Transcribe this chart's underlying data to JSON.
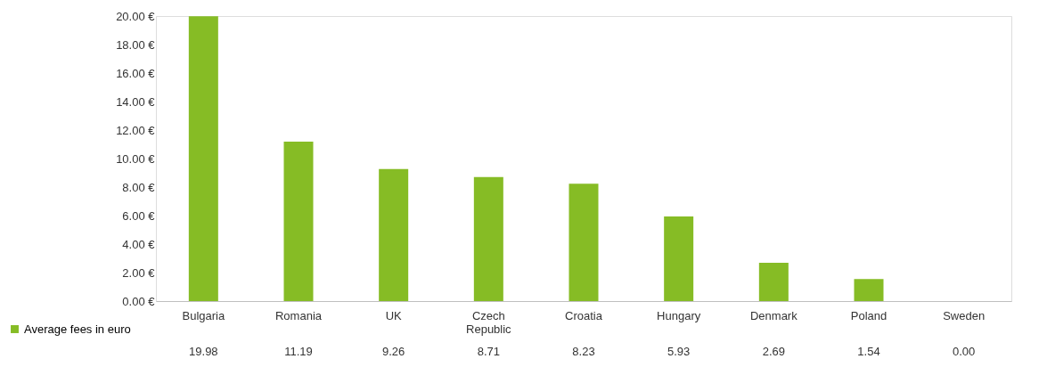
{
  "chart_data": {
    "type": "bar",
    "categories": [
      "Bulgaria",
      "Romania",
      "UK",
      "Czech Republic",
      "Croatia",
      "Hungary",
      "Denmark",
      "Poland",
      "Sweden"
    ],
    "series": [
      {
        "name": "Average fees in euro",
        "color": "#86bc25",
        "values": [
          19.98,
          11.19,
          9.26,
          8.71,
          8.23,
          5.93,
          2.69,
          1.54,
          0.0
        ]
      }
    ],
    "ylim": [
      0,
      20
    ],
    "yticks": [
      {
        "value": 0,
        "label": "0.00 €"
      },
      {
        "value": 2,
        "label": "2.00 €"
      },
      {
        "value": 4,
        "label": "4.00 €"
      },
      {
        "value": 6,
        "label": "6.00 €"
      },
      {
        "value": 8,
        "label": "8.00 €"
      },
      {
        "value": 10,
        "label": "10.00 €"
      },
      {
        "value": 12,
        "label": "12.00 €"
      },
      {
        "value": 14,
        "label": "14.00 €"
      },
      {
        "value": 16,
        "label": "16.00 €"
      },
      {
        "value": 18,
        "label": "18.00 €"
      },
      {
        "value": 20,
        "label": "20.00 €"
      }
    ],
    "value_labels": [
      "19.98",
      "11.19",
      "9.26",
      "8.71",
      "8.23",
      "5.93",
      "2.69",
      "1.54",
      "0.00"
    ],
    "grid": false,
    "legend": "bottom left"
  }
}
